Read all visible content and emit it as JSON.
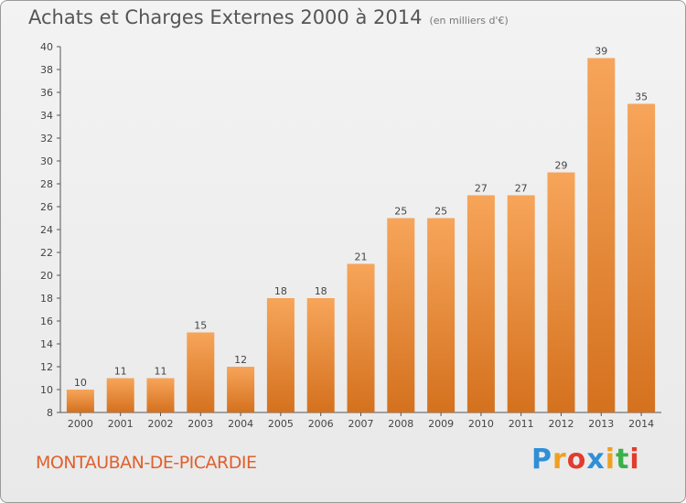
{
  "header": {
    "title": "Achats et Charges Externes 2000 à 2014",
    "subtitle": "(en milliers d'€)"
  },
  "footer": {
    "town": "MONTAUBAN-DE-PICARDIE",
    "logo_text": "Proxiti"
  },
  "colors": {
    "bar_light": "#f7a55a",
    "bar_dark": "#d4711e",
    "town_text": "#e0602c"
  },
  "chart_data": {
    "type": "bar",
    "title": "Achats et Charges Externes 2000 à 2014",
    "subtitle": "(en milliers d'€)",
    "categories": [
      "2000",
      "2001",
      "2002",
      "2003",
      "2004",
      "2005",
      "2006",
      "2007",
      "2008",
      "2009",
      "2010",
      "2011",
      "2012",
      "2013",
      "2014"
    ],
    "values": [
      10,
      11,
      11,
      15,
      12,
      18,
      18,
      21,
      25,
      25,
      27,
      27,
      29,
      39,
      35
    ],
    "ylim": [
      8,
      40
    ],
    "yticks": [
      8,
      10,
      12,
      14,
      16,
      18,
      20,
      22,
      24,
      26,
      28,
      30,
      32,
      34,
      36,
      38,
      40
    ],
    "grid": false,
    "legend": "none"
  }
}
